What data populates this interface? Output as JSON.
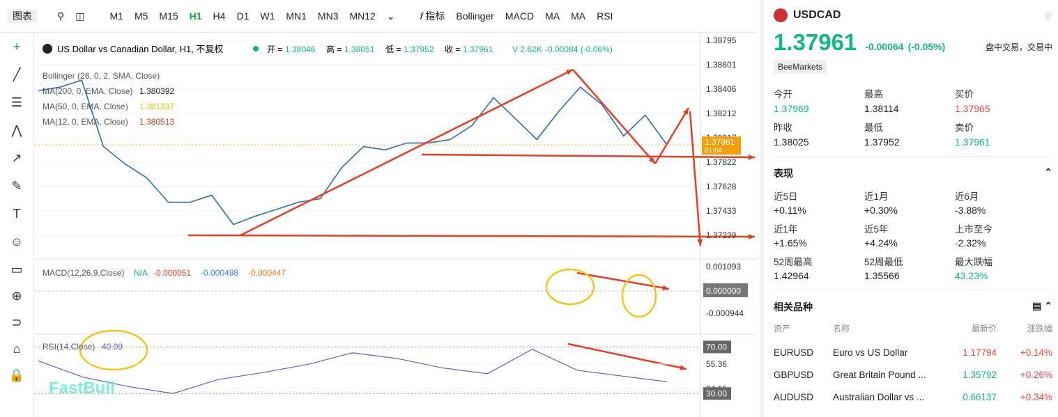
{
  "toolbar": {
    "chart_menu": "图表",
    "timeframes": [
      "M1",
      "M5",
      "M15",
      "H1",
      "H4",
      "D1",
      "W1",
      "MN1",
      "MN3",
      "MN12"
    ],
    "active_timeframe": 3,
    "indicators_menu": "指标",
    "indicators": [
      "Bollinger",
      "MACD",
      "MA",
      "MA",
      "RSI"
    ]
  },
  "legend": {
    "title": "US Dollar vs Canadian Dollar, H1, 不复权",
    "ohlc": [
      [
        "开 =",
        "1.38046"
      ],
      [
        "高 =",
        "1.38051"
      ],
      [
        "低 =",
        "1.37952"
      ],
      [
        "收 =",
        "1.37961"
      ]
    ],
    "volume": "V 2.62K",
    "change": "-0.00084 (-0.06%)",
    "overlays": [
      [
        "Bollinger (26, 0, 2, SMA, Close)",
        ""
      ],
      [
        "MA(200, 0, EMA, Close)",
        "1.380392"
      ],
      [
        "MA(50, 0, EMA, Close)",
        "1.381337"
      ],
      [
        "MA(12, 0, EMA, Close)",
        "1.380513"
      ]
    ]
  },
  "price_chart": {
    "ylim": [
      1.3705,
      1.3884
    ],
    "yticks": [
      1.38795,
      1.38601,
      1.38406,
      1.38212,
      1.38017,
      1.37822,
      1.37628,
      1.37433,
      1.37239
    ],
    "current_price": 1.37961,
    "current_label": "1.37961",
    "countdown": "01:04",
    "series": [
      {
        "name": "Close",
        "color": "#2b6cb0",
        "values": [
          1.38394,
          1.38422,
          1.38478,
          1.37948,
          1.37809,
          1.37698,
          1.37503,
          1.37503,
          1.37559,
          1.37325,
          1.37391,
          1.37447,
          1.37503,
          1.37531,
          1.37781,
          1.37948,
          1.37921,
          1.37976,
          1.37976,
          1.38004,
          1.38115,
          1.38338,
          1.38171,
          1.38004,
          1.38227,
          1.38422,
          1.38283,
          1.38032,
          1.38199,
          1.37961
        ]
      }
    ]
  },
  "macd": {
    "label": "MACD(12,26,9,Close)",
    "values": [
      "N/A",
      "-0.000051",
      "-0.000498",
      "-0.000447"
    ],
    "axis": [
      "0.001093",
      "0.000000",
      "-0.000944"
    ]
  },
  "rsi": {
    "label": "RSI(14,Close)",
    "value": "40.09",
    "ylim": [
      14,
      78
    ],
    "yticks": [
      {
        "value": 70,
        "label": "70.00"
      },
      55.36,
      34.15,
      {
        "value": 30,
        "label": "30.00"
      }
    ],
    "series": [
      {
        "name": "RSI",
        "color": "#6a5acd",
        "values": [
          58,
          44,
          36,
          30,
          42,
          48,
          55,
          65,
          60,
          52,
          47,
          68,
          50,
          45,
          40.09
        ]
      }
    ]
  },
  "quote": {
    "symbol": "USDCAD",
    "price": "1.37961",
    "change": "-0.00064",
    "change_pct": "(-0.05%)",
    "status": "盘中交易，交易中",
    "source": "BeeMarkets",
    "stats": [
      {
        "label": "今开",
        "value": "1.37969",
        "color": "#10b981"
      },
      {
        "label": "最高",
        "value": "1.38114",
        "color": "#222"
      },
      {
        "label": "买价",
        "value": "1.37965",
        "color": "#ef4444"
      },
      {
        "label": "昨收",
        "value": "1.38025",
        "color": "#222"
      },
      {
        "label": "最低",
        "value": "1.37952",
        "color": "#222"
      },
      {
        "label": "卖价",
        "value": "1.37961",
        "color": "#10b981"
      }
    ]
  },
  "performance": {
    "title": "表现",
    "items": [
      {
        "label": "近5日",
        "value": "+0.11%",
        "color": "#222"
      },
      {
        "label": "近1月",
        "value": "+0.30%",
        "color": "#222"
      },
      {
        "label": "近6月",
        "value": "-3.88%",
        "color": "#222"
      },
      {
        "label": "近1年",
        "value": "+1.65%",
        "color": "#222"
      },
      {
        "label": "近5年",
        "value": "+4.24%",
        "color": "#222"
      },
      {
        "label": "上市至今",
        "value": "-2.32%",
        "color": "#222"
      },
      {
        "label": "52周最高",
        "value": "1.42964",
        "color": "#222"
      },
      {
        "label": "52周最低",
        "value": "1.35566",
        "color": "#222"
      },
      {
        "label": "最大跌幅",
        "value": "43.23%",
        "color": "#10b981"
      }
    ]
  },
  "related": {
    "title": "相关品种",
    "header": [
      "资产",
      "名称",
      "最新价",
      "涨跌幅"
    ],
    "rows": [
      [
        "EURUSD",
        "Euro vs US Dollar",
        "1.17794",
        "+0.14%"
      ],
      [
        "GBPUSD",
        "Great Britain Pound ...",
        "1.35792",
        "+0.26%"
      ],
      [
        "AUDUSD",
        "Australian Dollar vs ...",
        "0.66137",
        "+0.34%"
      ]
    ]
  },
  "watermark": "FastBull"
}
